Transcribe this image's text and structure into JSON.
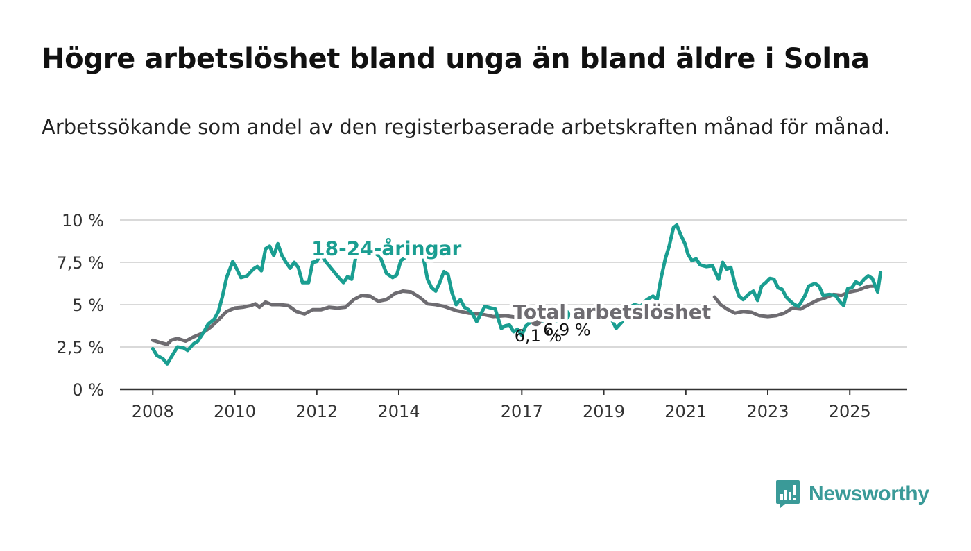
{
  "header": {
    "title": "Högre arbetslöshet bland unga än bland äldre i Solna",
    "subtitle": "Arbetssökande som andel av den registerbaserade arbetskraften månad för månad."
  },
  "brand": {
    "name": "Newsworthy",
    "icon": "newsworthy-logo-icon",
    "color": "#3a9a98"
  },
  "chart_data": {
    "type": "line",
    "title": "Högre arbetslöshet bland unga än bland äldre i Solna",
    "subtitle": "Arbetssökande som andel av den registerbaserade arbetskraften månad för månad.",
    "xlabel": "",
    "ylabel": "",
    "xlim": [
      2007.2,
      2026.4
    ],
    "ylim": [
      0,
      10
    ],
    "x_ticks": [
      2008,
      2010,
      2012,
      2014,
      2017,
      2019,
      2021,
      2023,
      2025
    ],
    "y_ticks": [
      0,
      2.5,
      5,
      7.5,
      10
    ],
    "y_tick_labels": [
      "0 %",
      "2,5 %",
      "5 %",
      "7,5 %",
      "10 %"
    ],
    "grid": true,
    "series": [
      {
        "name": "Total arbetslöshet",
        "color": "#6e6c71",
        "end_label": "6,1 %",
        "points": [
          [
            2008.0,
            2.9
          ],
          [
            2008.2,
            2.75
          ],
          [
            2008.35,
            2.65
          ],
          [
            2008.45,
            2.9
          ],
          [
            2008.6,
            3.0
          ],
          [
            2008.8,
            2.85
          ],
          [
            2009.0,
            3.1
          ],
          [
            2009.2,
            3.3
          ],
          [
            2009.4,
            3.65
          ],
          [
            2009.6,
            4.1
          ],
          [
            2009.8,
            4.6
          ],
          [
            2010.0,
            4.8
          ],
          [
            2010.2,
            4.85
          ],
          [
            2010.4,
            4.95
          ],
          [
            2010.5,
            5.05
          ],
          [
            2010.6,
            4.85
          ],
          [
            2010.75,
            5.15
          ],
          [
            2010.9,
            5.0
          ],
          [
            2011.1,
            5.0
          ],
          [
            2011.3,
            4.95
          ],
          [
            2011.5,
            4.6
          ],
          [
            2011.7,
            4.45
          ],
          [
            2011.9,
            4.7
          ],
          [
            2012.1,
            4.7
          ],
          [
            2012.3,
            4.85
          ],
          [
            2012.5,
            4.8
          ],
          [
            2012.7,
            4.85
          ],
          [
            2012.9,
            5.3
          ],
          [
            2013.1,
            5.55
          ],
          [
            2013.3,
            5.5
          ],
          [
            2013.5,
            5.2
          ],
          [
            2013.7,
            5.3
          ],
          [
            2013.9,
            5.65
          ],
          [
            2014.1,
            5.8
          ],
          [
            2014.3,
            5.75
          ],
          [
            2014.5,
            5.45
          ],
          [
            2014.7,
            5.05
          ],
          [
            2014.9,
            5.0
          ],
          [
            2015.1,
            4.9
          ],
          [
            2015.4,
            4.65
          ],
          [
            2015.7,
            4.5
          ],
          [
            2016.0,
            4.45
          ],
          [
            2016.3,
            4.3
          ],
          [
            2016.6,
            4.35
          ],
          [
            2016.9,
            4.25
          ],
          [
            2017.1,
            4.3
          ],
          [
            2017.35,
            4.05
          ]
        ]
      },
      {
        "name": "Total arbetslöshet",
        "color": "#6e6c71",
        "points": [
          [
            2021.7,
            5.45
          ],
          [
            2021.85,
            5.0
          ],
          [
            2022.0,
            4.75
          ],
          [
            2022.2,
            4.5
          ],
          [
            2022.4,
            4.6
          ],
          [
            2022.6,
            4.55
          ],
          [
            2022.8,
            4.35
          ],
          [
            2023.0,
            4.3
          ],
          [
            2023.2,
            4.35
          ],
          [
            2023.4,
            4.5
          ],
          [
            2023.6,
            4.8
          ],
          [
            2023.8,
            4.75
          ],
          [
            2024.0,
            5.0
          ],
          [
            2024.2,
            5.25
          ],
          [
            2024.4,
            5.4
          ],
          [
            2024.6,
            5.6
          ],
          [
            2024.8,
            5.55
          ],
          [
            2025.0,
            5.75
          ],
          [
            2025.2,
            5.85
          ],
          [
            2025.35,
            6.0
          ],
          [
            2025.5,
            6.1
          ],
          [
            2025.58,
            6.1
          ]
        ]
      },
      {
        "name": "18-24-åringar",
        "color": "#1a9e91",
        "end_label": "6,9 %",
        "points": [
          [
            2008.0,
            2.4
          ],
          [
            2008.1,
            2.0
          ],
          [
            2008.25,
            1.8
          ],
          [
            2008.35,
            1.5
          ],
          [
            2008.45,
            1.9
          ],
          [
            2008.6,
            2.5
          ],
          [
            2008.75,
            2.45
          ],
          [
            2008.85,
            2.3
          ],
          [
            2009.0,
            2.7
          ],
          [
            2009.1,
            2.85
          ],
          [
            2009.25,
            3.4
          ],
          [
            2009.35,
            3.85
          ],
          [
            2009.5,
            4.15
          ],
          [
            2009.6,
            4.6
          ],
          [
            2009.7,
            5.5
          ],
          [
            2009.8,
            6.6
          ],
          [
            2009.95,
            7.55
          ],
          [
            2010.05,
            7.1
          ],
          [
            2010.15,
            6.6
          ],
          [
            2010.3,
            6.7
          ],
          [
            2010.45,
            7.1
          ],
          [
            2010.55,
            7.25
          ],
          [
            2010.65,
            7.0
          ],
          [
            2010.75,
            8.3
          ],
          [
            2010.85,
            8.45
          ],
          [
            2010.95,
            7.9
          ],
          [
            2011.05,
            8.6
          ],
          [
            2011.15,
            7.9
          ],
          [
            2011.25,
            7.5
          ],
          [
            2011.35,
            7.15
          ],
          [
            2011.45,
            7.5
          ],
          [
            2011.55,
            7.2
          ],
          [
            2011.65,
            6.3
          ],
          [
            2011.8,
            6.3
          ],
          [
            2011.9,
            7.5
          ],
          [
            2012.0,
            7.55
          ],
          [
            2012.1,
            8.0
          ],
          [
            2012.2,
            7.6
          ],
          [
            2012.3,
            7.3
          ],
          [
            2012.4,
            7.0
          ],
          [
            2012.5,
            6.7
          ],
          [
            2012.65,
            6.3
          ],
          [
            2012.75,
            6.65
          ],
          [
            2012.85,
            6.5
          ],
          [
            2012.95,
            7.8
          ],
          [
            2013.3,
            8.3
          ],
          [
            2013.55,
            7.8
          ],
          [
            2013.7,
            6.85
          ],
          [
            2013.85,
            6.6
          ],
          [
            2013.95,
            6.75
          ],
          [
            2014.05,
            7.6
          ],
          [
            2014.3,
            8.05
          ],
          [
            2014.6,
            7.8
          ],
          [
            2014.7,
            6.5
          ],
          [
            2014.8,
            6.0
          ],
          [
            2014.9,
            5.8
          ],
          [
            2015.0,
            6.3
          ],
          [
            2015.1,
            6.95
          ],
          [
            2015.2,
            6.8
          ],
          [
            2015.3,
            5.7
          ],
          [
            2015.4,
            5.0
          ],
          [
            2015.5,
            5.3
          ],
          [
            2015.6,
            4.85
          ],
          [
            2015.7,
            4.7
          ],
          [
            2015.8,
            4.45
          ],
          [
            2015.9,
            4.0
          ],
          [
            2016.0,
            4.45
          ],
          [
            2016.1,
            4.9
          ],
          [
            2016.25,
            4.8
          ],
          [
            2016.35,
            4.75
          ],
          [
            2016.5,
            3.6
          ],
          [
            2016.6,
            3.75
          ],
          [
            2016.7,
            3.8
          ],
          [
            2016.8,
            3.4
          ],
          [
            2016.9,
            3.55
          ],
          [
            2017.0,
            3.2
          ],
          [
            2017.1,
            3.75
          ],
          [
            2017.2,
            3.95
          ],
          [
            2017.35,
            4.15
          ],
          [
            2017.5,
            4.05
          ],
          [
            2017.7,
            4.15
          ],
          [
            2017.85,
            4.05
          ],
          [
            2017.95,
            4.5
          ],
          [
            2018.05,
            4.4
          ]
        ]
      },
      {
        "name": "18-24-åringar",
        "color": "#1a9e91",
        "points": [
          [
            2018.9,
            5.1
          ],
          [
            2019.1,
            4.6
          ],
          [
            2019.2,
            4.1
          ],
          [
            2019.3,
            3.6
          ],
          [
            2019.45,
            4.0
          ],
          [
            2019.6,
            4.8
          ],
          [
            2019.75,
            5.0
          ],
          [
            2019.9,
            4.9
          ],
          [
            2020.05,
            5.3
          ],
          [
            2020.2,
            5.5
          ],
          [
            2020.3,
            5.3
          ],
          [
            2020.4,
            6.6
          ],
          [
            2020.5,
            7.7
          ],
          [
            2020.6,
            8.5
          ],
          [
            2020.7,
            9.55
          ],
          [
            2020.78,
            9.7
          ],
          [
            2020.88,
            9.1
          ],
          [
            2020.98,
            8.6
          ],
          [
            2021.05,
            8.0
          ],
          [
            2021.15,
            7.6
          ],
          [
            2021.25,
            7.7
          ],
          [
            2021.35,
            7.35
          ],
          [
            2021.5,
            7.25
          ],
          [
            2021.65,
            7.3
          ],
          [
            2021.8,
            6.5
          ],
          [
            2021.9,
            7.5
          ],
          [
            2022.0,
            7.1
          ],
          [
            2022.1,
            7.2
          ],
          [
            2022.2,
            6.2
          ],
          [
            2022.3,
            5.5
          ],
          [
            2022.4,
            5.3
          ],
          [
            2022.55,
            5.65
          ],
          [
            2022.65,
            5.8
          ],
          [
            2022.75,
            5.25
          ],
          [
            2022.85,
            6.1
          ],
          [
            2022.95,
            6.3
          ],
          [
            2023.05,
            6.55
          ],
          [
            2023.15,
            6.5
          ],
          [
            2023.25,
            6.0
          ],
          [
            2023.35,
            5.9
          ],
          [
            2023.45,
            5.45
          ],
          [
            2023.55,
            5.2
          ],
          [
            2023.65,
            5.0
          ],
          [
            2023.75,
            4.9
          ],
          [
            2023.9,
            5.5
          ],
          [
            2024.0,
            6.1
          ],
          [
            2024.15,
            6.25
          ],
          [
            2024.25,
            6.1
          ],
          [
            2024.35,
            5.55
          ],
          [
            2024.5,
            5.6
          ],
          [
            2024.65,
            5.55
          ],
          [
            2024.75,
            5.2
          ],
          [
            2024.85,
            4.95
          ],
          [
            2024.95,
            5.95
          ],
          [
            2025.05,
            6.0
          ],
          [
            2025.15,
            6.35
          ],
          [
            2025.25,
            6.2
          ],
          [
            2025.35,
            6.5
          ],
          [
            2025.45,
            6.7
          ],
          [
            2025.55,
            6.55
          ],
          [
            2025.62,
            6.1
          ],
          [
            2025.68,
            5.75
          ],
          [
            2025.75,
            6.9
          ]
        ]
      }
    ],
    "annotations": [
      {
        "text": "18-24-åringar",
        "color": "#1a9e91",
        "x": 2013.7,
        "y": 8.35
      },
      {
        "text": "Total arbetslöshet",
        "color": "#6e6c71",
        "x": 2019.2,
        "y": 4.6
      }
    ]
  }
}
